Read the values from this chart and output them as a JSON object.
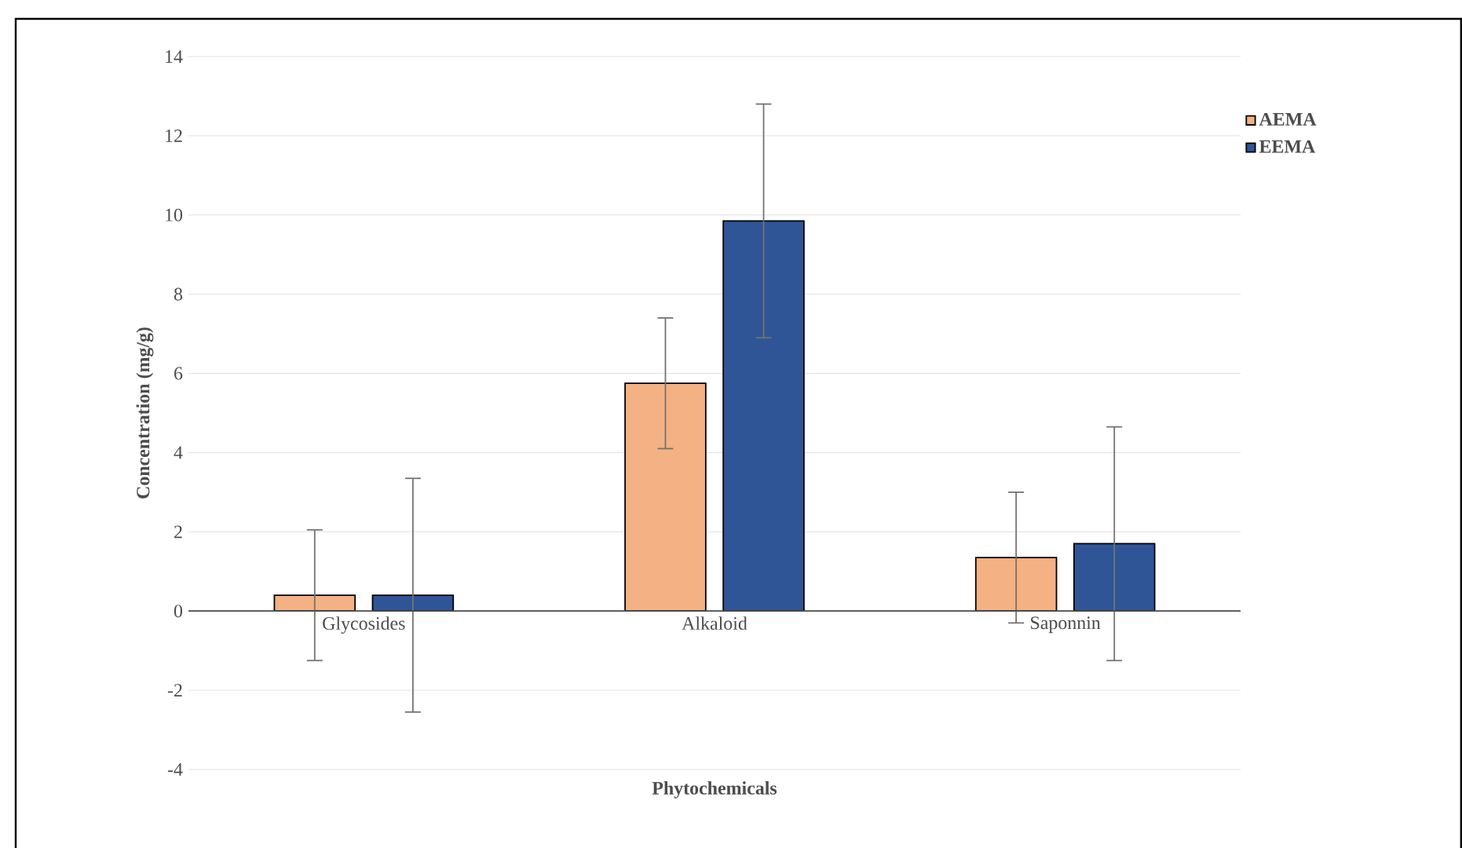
{
  "chart_data": {
    "type": "bar",
    "xlabel": "Phytochemicals",
    "ylabel": "Concentration (mg/g)",
    "categories": [
      "Glycosides",
      "Alkaloid",
      "Saponnin"
    ],
    "series": [
      {
        "name": "AEMA",
        "color": "#f4b183",
        "values": [
          0.4,
          5.75,
          1.35
        ],
        "errors": [
          1.65,
          1.65,
          1.65
        ]
      },
      {
        "name": "EEMA",
        "color": "#2f5597",
        "values": [
          0.4,
          9.85,
          1.7
        ],
        "errors": [
          2.95,
          2.95,
          2.95
        ]
      }
    ],
    "ylim": [
      -4,
      14
    ],
    "yticks": [
      -4,
      -2,
      0,
      2,
      4,
      6,
      8,
      10,
      12,
      14
    ],
    "grid": "y",
    "legend": "top right"
  }
}
